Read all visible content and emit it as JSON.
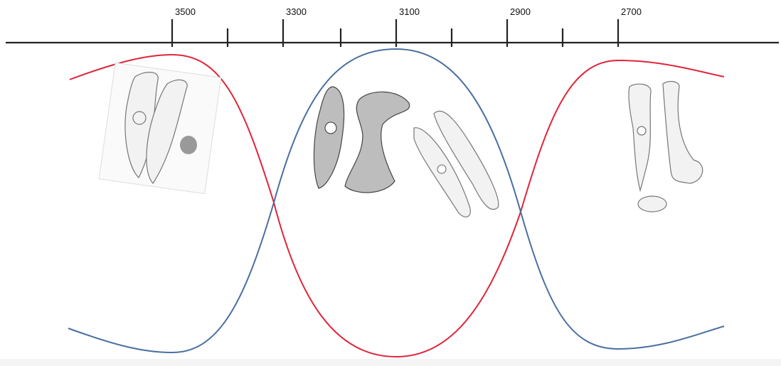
{
  "timeline": {
    "labels": [
      "3500",
      "3300",
      "3100",
      "2900",
      "2700"
    ]
  }
}
